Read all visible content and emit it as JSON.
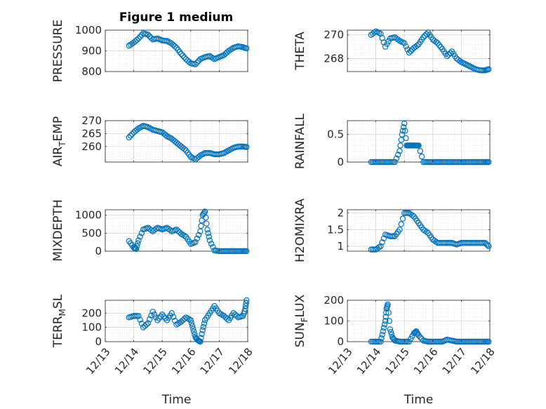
{
  "figure": {
    "title": "Figure 1 medium",
    "marker_color": "#0072BD"
  },
  "chart_data": [
    {
      "type": "scatter",
      "ylabel": "PRESSURE",
      "title": "Figure 1 medium",
      "xlabel": "",
      "ylim": [
        800,
        1000
      ],
      "yticks": [
        "800",
        "900",
        "1000"
      ],
      "xlim": [
        "12/13",
        "12/18"
      ],
      "grid": true,
      "x_dates": [
        "12/13 20:00",
        "12/14 00:00",
        "12/14 04:00",
        "12/14 08:00",
        "12/14 12:00",
        "12/14 16:00",
        "12/14 20:00",
        "12/15 00:00",
        "12/15 04:00",
        "12/15 08:00",
        "12/15 12:00",
        "12/15 16:00",
        "12/15 20:00",
        "12/16 00:00",
        "12/16 04:00",
        "12/16 08:00",
        "12/16 12:00",
        "12/16 16:00",
        "12/16 20:00",
        "12/17 00:00",
        "12/17 04:00",
        "12/17 08:00",
        "12/17 12:00",
        "12/17 16:00",
        "12/17 20:00",
        "12/17 23:00"
      ],
      "values": [
        925,
        940,
        960,
        985,
        978,
        955,
        960,
        950,
        948,
        935,
        915,
        885,
        860,
        840,
        835,
        860,
        870,
        875,
        860,
        870,
        880,
        900,
        915,
        922,
        918,
        912
      ]
    },
    {
      "type": "scatter",
      "ylabel": "THETA",
      "xlabel": "",
      "ylim": [
        266.9,
        270.4
      ],
      "yticks": [
        "268",
        "270"
      ],
      "xlim": [
        "12/13",
        "12/18"
      ],
      "grid": true,
      "x_dates": [
        "12/13 20:00",
        "12/14 00:00",
        "12/14 04:00",
        "12/14 08:00",
        "12/14 12:00",
        "12/14 16:00",
        "12/14 20:00",
        "12/15 00:00",
        "12/15 04:00",
        "12/15 08:00",
        "12/15 12:00",
        "12/15 16:00",
        "12/15 20:00",
        "12/16 00:00",
        "12/16 04:00",
        "12/16 08:00",
        "12/16 12:00",
        "12/16 16:00",
        "12/16 20:00",
        "12/17 00:00",
        "12/17 04:00",
        "12/17 08:00",
        "12/17 12:00",
        "12/17 16:00",
        "12/17 20:00",
        "12/17 23:00"
      ],
      "values": [
        270.0,
        270.3,
        270.1,
        269.0,
        269.7,
        269.8,
        269.5,
        269.3,
        268.5,
        268.9,
        269.2,
        269.8,
        270.2,
        269.6,
        269.3,
        268.8,
        268.2,
        268.6,
        268.0,
        267.7,
        267.5,
        267.3,
        267.1,
        267.0,
        267.0,
        267.1
      ]
    },
    {
      "type": "scatter",
      "ylabel": "AIR_TEMP",
      "xlabel": "",
      "ylim": [
        254,
        270
      ],
      "yticks": [
        "260",
        "265",
        "270"
      ],
      "xlim": [
        "12/13",
        "12/18"
      ],
      "grid": true,
      "x_dates": [
        "12/13 20:00",
        "12/14 00:00",
        "12/14 04:00",
        "12/14 08:00",
        "12/14 12:00",
        "12/14 16:00",
        "12/14 20:00",
        "12/15 00:00",
        "12/15 04:00",
        "12/15 08:00",
        "12/15 12:00",
        "12/15 16:00",
        "12/15 20:00",
        "12/16 00:00",
        "12/16 04:00",
        "12/16 08:00",
        "12/16 12:00",
        "12/16 16:00",
        "12/16 20:00",
        "12/17 00:00",
        "12/17 04:00",
        "12/17 08:00",
        "12/17 12:00",
        "12/17 16:00",
        "12/17 20:00",
        "12/17 23:00"
      ],
      "values": [
        263.5,
        265.5,
        267.0,
        268.0,
        267.5,
        266.5,
        266.0,
        265.5,
        264.0,
        263.0,
        261.5,
        260.0,
        258.5,
        256.0,
        255.0,
        256.5,
        257.5,
        257.5,
        257.0,
        257.0,
        257.5,
        258.5,
        259.5,
        260.0,
        260.0,
        259.8
      ]
    },
    {
      "type": "scatter",
      "ylabel": "RAINFALL",
      "xlabel": "",
      "ylim": [
        0,
        0.75
      ],
      "yticks": [
        "0",
        "0.5"
      ],
      "xlim": [
        "12/13",
        "12/18"
      ],
      "grid": true,
      "x_dates": [
        "12/13 20:00",
        "12/14 00:00",
        "12/14 04:00",
        "12/14 08:00",
        "12/14 12:00",
        "12/14 16:00",
        "12/14 20:00",
        "12/14 22:00",
        "12/15 00:00",
        "12/15 02:00",
        "12/15 04:00",
        "12/15 06:00",
        "12/15 08:00",
        "12/15 10:00",
        "12/15 12:00",
        "12/15 16:00",
        "12/15 20:00",
        "12/16 00:00",
        "12/16 04:00",
        "12/16 08:00",
        "12/16 12:00",
        "12/16 16:00",
        "12/16 20:00",
        "12/17 00:00",
        "12/17 04:00",
        "12/17 08:00",
        "12/17 12:00",
        "12/17 16:00",
        "12/17 20:00",
        "12/17 23:00"
      ],
      "values": [
        0,
        0,
        0,
        0,
        0,
        0,
        0.2,
        0.5,
        0.7,
        0.3,
        0.3,
        0.3,
        0.3,
        0.3,
        0.3,
        0,
        0,
        0,
        0,
        0,
        0,
        0,
        0,
        0,
        0,
        0,
        0,
        0,
        0,
        0
      ]
    },
    {
      "type": "scatter",
      "ylabel": "MIXDEPTH",
      "xlabel": "",
      "ylim": [
        0,
        1150
      ],
      "yticks": [
        "0",
        "500",
        "1000"
      ],
      "xlim": [
        "12/13",
        "12/18"
      ],
      "grid": true,
      "x_dates": [
        "12/13 20:00",
        "12/14 00:00",
        "12/14 02:00",
        "12/14 04:00",
        "12/14 08:00",
        "12/14 12:00",
        "12/14 16:00",
        "12/14 20:00",
        "12/15 00:00",
        "12/15 04:00",
        "12/15 08:00",
        "12/15 12:00",
        "12/15 16:00",
        "12/15 20:00",
        "12/16 00:00",
        "12/16 04:00",
        "12/16 08:00",
        "12/16 10:00",
        "12/16 12:00",
        "12/16 14:00",
        "12/16 16:00",
        "12/16 20:00",
        "12/17 00:00",
        "12/17 04:00",
        "12/17 08:00",
        "12/17 12:00",
        "12/17 16:00",
        "12/17 20:00",
        "12/17 23:00"
      ],
      "values": [
        280,
        100,
        60,
        300,
        600,
        650,
        550,
        650,
        600,
        650,
        550,
        600,
        480,
        400,
        200,
        250,
        550,
        1000,
        1100,
        600,
        300,
        20,
        0,
        0,
        0,
        0,
        0,
        0,
        0
      ]
    },
    {
      "type": "scatter",
      "ylabel": "H2OMIXRA",
      "xlabel": "",
      "ylim": [
        0.85,
        2.1
      ],
      "yticks": [
        "1",
        "1.5",
        "2"
      ],
      "xlim": [
        "12/13",
        "12/18"
      ],
      "grid": true,
      "x_dates": [
        "12/13 20:00",
        "12/14 00:00",
        "12/14 04:00",
        "12/14 08:00",
        "12/14 12:00",
        "12/14 16:00",
        "12/14 20:00",
        "12/15 00:00",
        "12/15 04:00",
        "12/15 08:00",
        "12/15 12:00",
        "12/15 16:00",
        "12/15 20:00",
        "12/16 00:00",
        "12/16 04:00",
        "12/16 08:00",
        "12/16 12:00",
        "12/16 16:00",
        "12/16 20:00",
        "12/17 00:00",
        "12/17 04:00",
        "12/17 08:00",
        "12/17 12:00",
        "12/17 16:00",
        "12/17 20:00",
        "12/17 23:00"
      ],
      "values": [
        0.9,
        0.9,
        1.0,
        1.35,
        1.3,
        1.3,
        1.5,
        2.0,
        2.0,
        1.9,
        1.7,
        1.5,
        1.4,
        1.2,
        1.1,
        1.1,
        1.1,
        1.1,
        1.05,
        1.1,
        1.1,
        1.1,
        1.1,
        1.1,
        1.1,
        1.0
      ]
    },
    {
      "type": "scatter",
      "ylabel": "TERR_MSL",
      "xlabel": "Time",
      "ylim": [
        0,
        290
      ],
      "yticks": [
        "0",
        "100",
        "200"
      ],
      "xlim": [
        "12/13",
        "12/18"
      ],
      "xticks": [
        "12/13",
        "12/14",
        "12/15",
        "12/16",
        "12/17",
        "12/18"
      ],
      "grid": true,
      "x_dates": [
        "12/13 20:00",
        "12/14 00:00",
        "12/14 04:00",
        "12/14 08:00",
        "12/14 12:00",
        "12/14 16:00",
        "12/14 20:00",
        "12/15 00:00",
        "12/15 04:00",
        "12/15 08:00",
        "12/15 12:00",
        "12/15 16:00",
        "12/15 20:00",
        "12/16 00:00",
        "12/16 02:00",
        "12/16 04:00",
        "12/16 06:00",
        "12/16 08:00",
        "12/16 10:00",
        "12/16 12:00",
        "12/16 16:00",
        "12/16 20:00",
        "12/17 00:00",
        "12/17 04:00",
        "12/17 08:00",
        "12/17 12:00",
        "12/17 16:00",
        "12/17 20:00",
        "12/17 22:00",
        "12/17 23:00"
      ],
      "values": [
        170,
        180,
        180,
        100,
        130,
        210,
        150,
        190,
        150,
        200,
        120,
        140,
        170,
        150,
        90,
        30,
        10,
        0,
        80,
        150,
        200,
        250,
        200,
        180,
        150,
        200,
        170,
        180,
        230,
        290
      ]
    },
    {
      "type": "scatter",
      "ylabel": "SUN_FLUX",
      "xlabel": "Time",
      "ylim": [
        0,
        200
      ],
      "yticks": [
        "0",
        "100",
        "200"
      ],
      "xlim": [
        "12/13",
        "12/18"
      ],
      "xticks": [
        "12/13",
        "12/14",
        "12/15",
        "12/16",
        "12/17",
        "12/18"
      ],
      "grid": true,
      "x_dates": [
        "12/13 20:00",
        "12/14 00:00",
        "12/14 04:00",
        "12/14 06:00",
        "12/14 08:00",
        "12/14 09:00",
        "12/14 10:00",
        "12/14 12:00",
        "12/14 14:00",
        "12/14 16:00",
        "12/14 20:00",
        "12/15 00:00",
        "12/15 04:00",
        "12/15 08:00",
        "12/15 10:00",
        "12/15 12:00",
        "12/15 16:00",
        "12/15 20:00",
        "12/16 00:00",
        "12/16 04:00",
        "12/16 08:00",
        "12/16 12:00",
        "12/16 16:00",
        "12/16 20:00",
        "12/17 00:00",
        "12/17 04:00",
        "12/17 08:00",
        "12/17 12:00",
        "12/17 16:00",
        "12/17 20:00",
        "12/17 23:00"
      ],
      "values": [
        0,
        0,
        0,
        50,
        100,
        160,
        180,
        60,
        20,
        5,
        0,
        0,
        0,
        40,
        50,
        30,
        5,
        0,
        0,
        0,
        0,
        10,
        5,
        0,
        0,
        0,
        0,
        0,
        0,
        0,
        0
      ]
    }
  ]
}
